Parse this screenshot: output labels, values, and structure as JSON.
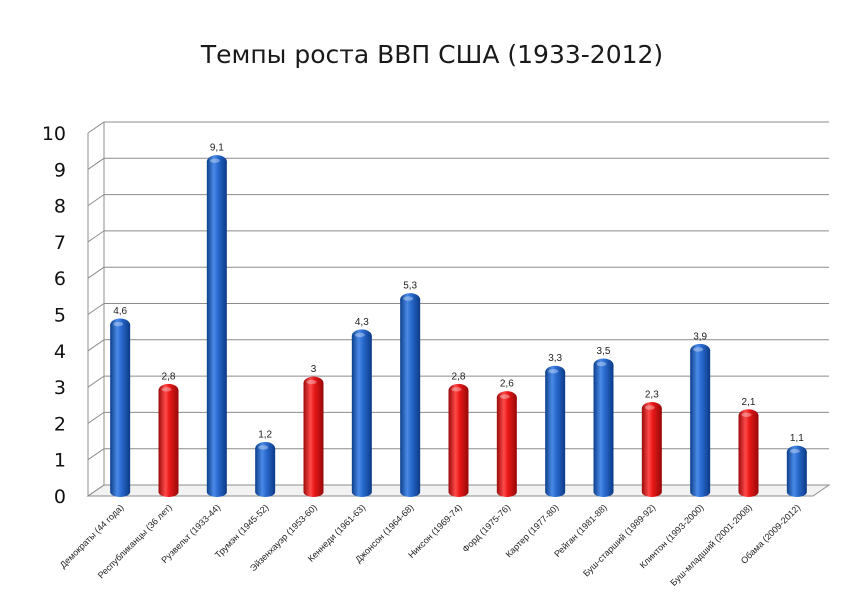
{
  "chart_data": {
    "type": "bar",
    "title": "Темпы роста ВВП США (1933-2012)",
    "ylim": [
      0,
      10
    ],
    "yticks": [
      0,
      1,
      2,
      3,
      4,
      5,
      6,
      7,
      8,
      9,
      10
    ],
    "grid": true,
    "categories": [
      "Демократы (44 года)",
      "Республиканцы (36 лет)",
      "Рузвельт (1933-44)",
      "Трумэн (1945-52)",
      "Эйзенхауэр (1953-60)",
      "Кеннеди (1961-63)",
      "Джонсон (1964-68)",
      "Никсон (1969-74)",
      "Форд (1975-76)",
      "Картер (1977-80)",
      "Рейган (1981-88)",
      "Буш-старший (1989-92)",
      "Клинтон (1993-2000)",
      "Буш-младший (2001-2008)",
      "Обама (2009-2012)"
    ],
    "values": [
      4.6,
      2.8,
      9.1,
      1.2,
      3,
      4.3,
      5.3,
      2.8,
      2.6,
      3.3,
      3.5,
      2.3,
      3.9,
      2.1,
      1.1
    ],
    "value_labels": [
      "4,6",
      "2,8",
      "9,1",
      "1,2",
      "3",
      "4,3",
      "5,3",
      "2,8",
      "2,6",
      "3,3",
      "3,5",
      "2,3",
      "3,9",
      "2,1",
      "1,1"
    ],
    "bar_colors": [
      "blue",
      "red",
      "blue",
      "blue",
      "red",
      "blue",
      "blue",
      "red",
      "red",
      "blue",
      "blue",
      "red",
      "blue",
      "red",
      "blue"
    ],
    "colors": {
      "blue": "#1f63c6",
      "red": "#e01414",
      "grid": "#8c8c8c"
    }
  }
}
